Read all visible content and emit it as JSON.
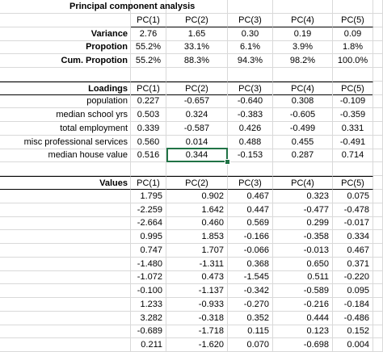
{
  "title": "Principal component analysis",
  "headers": [
    "PC(1)",
    "PC(2)",
    "PC(3)",
    "PC(4)",
    "PC(5)"
  ],
  "summary": [
    {
      "label": "Variance",
      "values": [
        "2.76",
        "1.65",
        "0.30",
        "0.19",
        "0.09"
      ]
    },
    {
      "label": "Propotion",
      "values": [
        "55.2%",
        "33.1%",
        "6.1%",
        "3.9%",
        "1.8%"
      ]
    },
    {
      "label": "Cum. Propotion",
      "values": [
        "55.2%",
        "88.3%",
        "94.3%",
        "98.2%",
        "100.0%"
      ]
    }
  ],
  "loadings": {
    "label": "Loadings",
    "rows": [
      {
        "label": "population",
        "values": [
          "0.227",
          "-0.657",
          "-0.640",
          "0.308",
          "-0.109"
        ]
      },
      {
        "label": "median school yrs",
        "values": [
          "0.503",
          "0.324",
          "-0.383",
          "-0.605",
          "-0.359"
        ]
      },
      {
        "label": "total employment",
        "values": [
          "0.339",
          "-0.587",
          "0.426",
          "-0.499",
          "0.331"
        ]
      },
      {
        "label": "misc professional services",
        "values": [
          "0.560",
          "0.014",
          "0.488",
          "0.455",
          "-0.491"
        ]
      },
      {
        "label": "median house value",
        "values": [
          "0.516",
          "0.344",
          "-0.153",
          "0.287",
          "0.714"
        ]
      }
    ]
  },
  "values": {
    "label": "Values",
    "rows": [
      [
        "1.795",
        "0.902",
        "0.467",
        "0.323",
        "0.075"
      ],
      [
        "-2.259",
        "1.642",
        "0.447",
        "-0.477",
        "-0.478"
      ],
      [
        "-2.664",
        "0.460",
        "0.569",
        "0.299",
        "-0.017"
      ],
      [
        "0.995",
        "1.853",
        "-0.166",
        "-0.358",
        "0.334"
      ],
      [
        "0.747",
        "1.707",
        "-0.066",
        "-0.013",
        "0.467"
      ],
      [
        "-1.480",
        "-1.311",
        "0.368",
        "0.650",
        "0.371"
      ],
      [
        "-1.072",
        "0.473",
        "-1.545",
        "0.511",
        "-0.220"
      ],
      [
        "-0.100",
        "-1.137",
        "-0.342",
        "-0.589",
        "0.095"
      ],
      [
        "1.233",
        "-0.933",
        "-0.270",
        "-0.216",
        "-0.184"
      ],
      [
        "3.282",
        "-0.318",
        "0.352",
        "0.444",
        "-0.486"
      ],
      [
        "-0.689",
        "-1.718",
        "0.115",
        "0.123",
        "0.152"
      ],
      [
        "0.211",
        "-1.620",
        "0.070",
        "-0.698",
        "0.004"
      ]
    ]
  }
}
